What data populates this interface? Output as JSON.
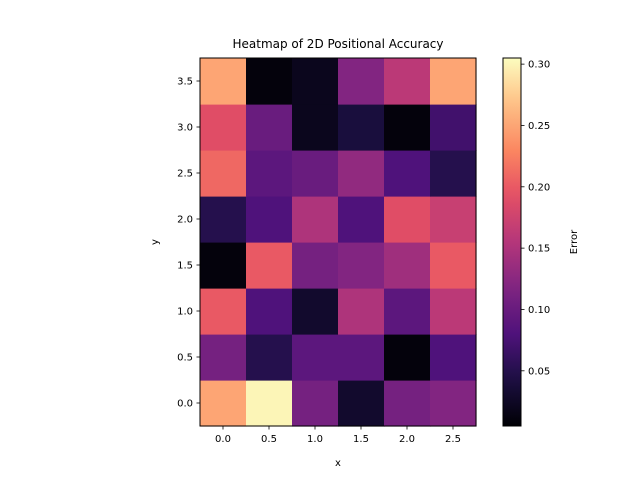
{
  "chart_data": {
    "type": "heatmap",
    "title": "Heatmap of 2D Positional Accuracy",
    "xlabel": "x",
    "ylabel": "y",
    "x": [
      0.0,
      0.5,
      1.0,
      1.5,
      2.0,
      2.5
    ],
    "y": [
      0.0,
      0.5,
      1.0,
      1.5,
      2.0,
      2.5,
      3.0,
      3.5
    ],
    "x_tick_labels": [
      "0.0",
      "0.5",
      "1.0",
      "1.5",
      "2.0",
      "2.5"
    ],
    "y_tick_labels": [
      "0.0",
      "0.5",
      "1.0",
      "1.5",
      "2.0",
      "2.5",
      "3.0",
      "3.5"
    ],
    "values": [
      [
        0.25,
        0.3,
        0.11,
        0.03,
        0.11,
        0.12
      ],
      [
        0.11,
        0.05,
        0.09,
        0.09,
        0.01,
        0.08
      ],
      [
        0.2,
        0.08,
        0.03,
        0.15,
        0.09,
        0.16
      ],
      [
        0.01,
        0.2,
        0.11,
        0.12,
        0.14,
        0.2
      ],
      [
        0.05,
        0.08,
        0.15,
        0.08,
        0.19,
        0.17
      ],
      [
        0.21,
        0.09,
        0.1,
        0.13,
        0.08,
        0.05
      ],
      [
        0.19,
        0.1,
        0.02,
        0.04,
        0.01,
        0.07
      ],
      [
        0.25,
        0.01,
        0.02,
        0.12,
        0.16,
        0.25
      ]
    ],
    "colormap": "magma",
    "vmin": 0.005,
    "vmax": 0.305,
    "colorbar": {
      "label": "Error",
      "ticks": [
        0.05,
        0.1,
        0.15,
        0.2,
        0.25,
        0.3
      ],
      "tick_labels": [
        "0.05",
        "0.10",
        "0.15",
        "0.20",
        "0.25",
        "0.30"
      ]
    },
    "grid": false
  }
}
